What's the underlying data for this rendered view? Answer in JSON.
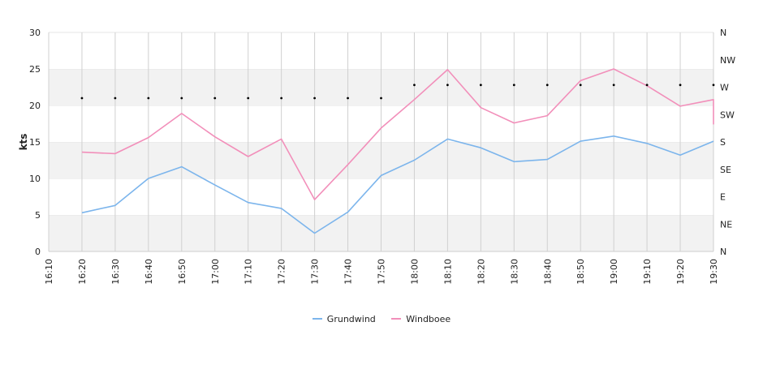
{
  "chart_data": {
    "type": "line",
    "ylabel": "kts",
    "ylim": [
      0,
      30
    ],
    "yticks": [
      0,
      5,
      10,
      15,
      20,
      25,
      30
    ],
    "y2ticks": [
      "N",
      "NE",
      "E",
      "SE",
      "S",
      "SW",
      "W",
      "NW",
      "N"
    ],
    "x": [
      "16:10",
      "16:20",
      "16:30",
      "16:40",
      "16:50",
      "17:00",
      "17:10",
      "17:20",
      "17:30",
      "17:40",
      "17:50",
      "18:00",
      "18:10",
      "18:20",
      "18:30",
      "18:40",
      "18:50",
      "19:00",
      "19:10",
      "19:20",
      "19:30"
    ],
    "grid": true,
    "legend_position": "bottom",
    "series": [
      {
        "name": "Grundwind",
        "color": "#7cb5ec",
        "values": [
          null,
          5.3,
          6.3,
          10.0,
          11.6,
          9.1,
          6.7,
          5.9,
          2.5,
          5.4,
          10.4,
          12.5,
          15.4,
          14.2,
          12.3,
          12.6,
          15.1,
          15.8,
          14.8,
          13.2,
          15.1
        ]
      },
      {
        "name": "Windboee",
        "color": "#f28fba",
        "values": [
          null,
          13.6,
          13.4,
          15.6,
          18.9,
          15.7,
          13.0,
          15.4,
          7.1,
          11.9,
          16.9,
          20.8,
          24.9,
          19.7,
          17.6,
          18.6,
          23.4,
          25.0,
          22.7,
          19.9,
          20.8
        ]
      }
    ],
    "direction_values": [
      null,
      21,
      21,
      21,
      21,
      21,
      21,
      21,
      21,
      21,
      21,
      22.8,
      22.8,
      22.8,
      22.8,
      22.8,
      22.8,
      22.8,
      22.8,
      22.8,
      22.8
    ],
    "final_drop": 17.4
  }
}
